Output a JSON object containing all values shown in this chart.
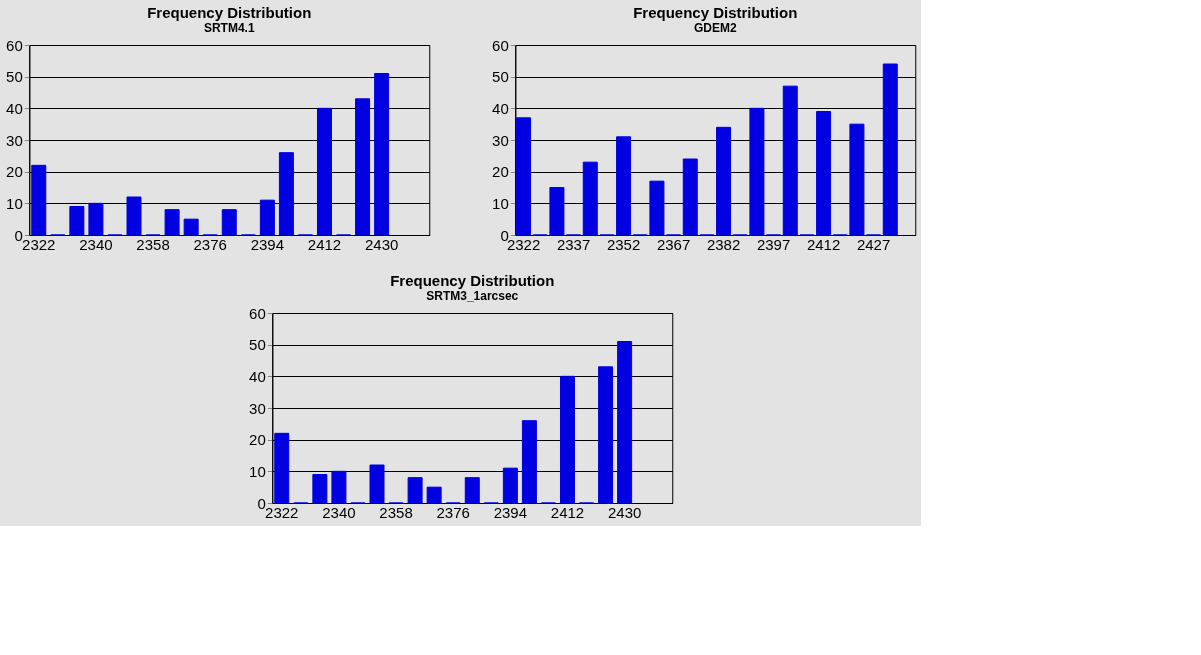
{
  "chart_data": [
    {
      "type": "bar",
      "title": "Frequency Distribution",
      "subtitle": "SRTM4.1",
      "categories": [
        "2322",
        null,
        null,
        "2340",
        null,
        null,
        "2358",
        null,
        null,
        "2376",
        null,
        null,
        "2394",
        null,
        null,
        "2412",
        null,
        null,
        "2430",
        null,
        null
      ],
      "values": [
        22,
        0,
        9,
        10,
        0,
        12,
        0,
        8,
        5,
        0,
        8,
        0,
        11,
        26,
        0,
        40,
        0,
        43,
        51,
        null,
        null
      ],
      "color": "#0000e0",
      "ylim": [
        0,
        60
      ],
      "yticks": [
        0,
        10,
        20,
        30,
        40,
        50,
        60
      ],
      "grid": "y"
    },
    {
      "type": "bar",
      "title": "Frequency Distribution",
      "subtitle": "GDEM2",
      "categories": [
        "2322",
        null,
        null,
        "2337",
        null,
        null,
        "2352",
        null,
        null,
        "2367",
        null,
        null,
        "2382",
        null,
        null,
        "2397",
        null,
        null,
        "2412",
        null,
        null,
        "2427",
        null,
        null
      ],
      "values": [
        37,
        0,
        15,
        0,
        23,
        0,
        31,
        0,
        17,
        0,
        24,
        0,
        34,
        0,
        40,
        0,
        47,
        0,
        39,
        0,
        35,
        0,
        54,
        null
      ],
      "color": "#0000e0",
      "ylim": [
        0,
        60
      ],
      "yticks": [
        0,
        10,
        20,
        30,
        40,
        50,
        60
      ],
      "grid": "y"
    },
    {
      "type": "bar",
      "title": "Frequency Distribution",
      "subtitle": "SRTM3_1arcsec",
      "categories": [
        "2322",
        null,
        null,
        "2340",
        null,
        null,
        "2358",
        null,
        null,
        "2376",
        null,
        null,
        "2394",
        null,
        null,
        "2412",
        null,
        null,
        "2430",
        null,
        null
      ],
      "values": [
        22,
        0,
        9,
        10,
        0,
        12,
        0,
        8,
        5,
        0,
        8,
        0,
        11,
        26,
        0,
        40,
        0,
        43,
        51,
        null,
        null
      ],
      "color": "#0000e0",
      "ylim": [
        0,
        60
      ],
      "yticks": [
        0,
        10,
        20,
        30,
        40,
        50,
        60
      ],
      "grid": "y"
    }
  ]
}
